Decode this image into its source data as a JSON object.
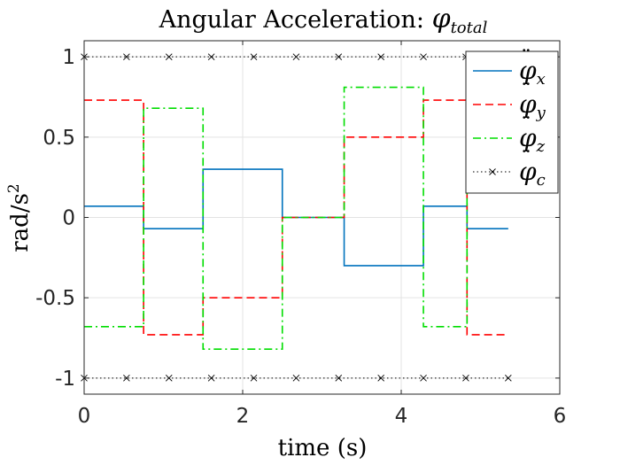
{
  "chart_data": {
    "type": "line",
    "title_main": "Angular Acceleration: ",
    "title_symbol": "φ",
    "title_subscript": "total",
    "xlabel": "time (s)",
    "ylabel_base": "rad/s",
    "ylabel_exp": "2",
    "xlim": [
      0,
      6
    ],
    "ylim": [
      -1.1,
      1.1
    ],
    "xticks": [
      0,
      2,
      4,
      6
    ],
    "xtick_labels": [
      "0",
      "2",
      "4",
      "6"
    ],
    "yticks": [
      -1,
      -0.5,
      0,
      0.5,
      1
    ],
    "ytick_labels": [
      "-1",
      "-0.5",
      "0",
      "0.5",
      "1"
    ],
    "grid": true,
    "legend_position": "top-right",
    "series": [
      {
        "name_symbol": "φ",
        "name_sub": "x",
        "color": "#0072BD",
        "style": "solid",
        "marker": "none",
        "x": [
          0,
          0.75,
          0.75,
          1.5,
          1.5,
          2.5,
          2.5,
          3.28,
          3.28,
          4.28,
          4.28,
          4.83,
          4.83,
          5.35
        ],
        "y": [
          0.07,
          0.07,
          -0.07,
          -0.07,
          0.3,
          0.3,
          0,
          0,
          -0.3,
          -0.3,
          0.07,
          0.07,
          -0.07,
          -0.07
        ]
      },
      {
        "name_symbol": "φ",
        "name_sub": "y",
        "color": "#FF0000",
        "style": "dashed",
        "marker": "none",
        "x": [
          0,
          0.75,
          0.75,
          1.5,
          1.5,
          2.5,
          2.5,
          3.28,
          3.28,
          4.28,
          4.28,
          4.83,
          4.83,
          5.35
        ],
        "y": [
          0.73,
          0.73,
          -0.73,
          -0.73,
          -0.5,
          -0.5,
          0,
          0,
          0.5,
          0.5,
          0.73,
          0.73,
          -0.73,
          -0.73
        ]
      },
      {
        "name_symbol": "φ",
        "name_sub": "z",
        "color": "#00DD00",
        "style": "dashdot",
        "marker": "none",
        "x": [
          0,
          0.75,
          0.75,
          1.5,
          1.5,
          2.5,
          2.5,
          3.28,
          3.28,
          4.28,
          4.28,
          4.83,
          4.83,
          5.35
        ],
        "y": [
          -0.68,
          -0.68,
          0.68,
          0.68,
          -0.82,
          -0.82,
          0,
          0,
          0.81,
          0.81,
          -0.68,
          -0.68,
          0.68,
          0.68
        ]
      },
      {
        "name_symbol": "φ",
        "name_sub": "c",
        "color": "#000000",
        "style": "dotted",
        "marker": "x",
        "x": [
          0,
          0.535,
          1.07,
          1.605,
          2.14,
          2.675,
          3.21,
          3.745,
          4.28,
          4.815,
          5.35
        ],
        "y": [
          1,
          1,
          1,
          1,
          1,
          1,
          1,
          1,
          1,
          1,
          1
        ],
        "x2": [
          0,
          0.535,
          1.07,
          1.605,
          2.14,
          2.675,
          3.21,
          3.745,
          4.28,
          4.815,
          5.35
        ],
        "y2": [
          -1,
          -1,
          -1,
          -1,
          -1,
          -1,
          -1,
          -1,
          -1,
          -1,
          -1
        ]
      }
    ]
  }
}
